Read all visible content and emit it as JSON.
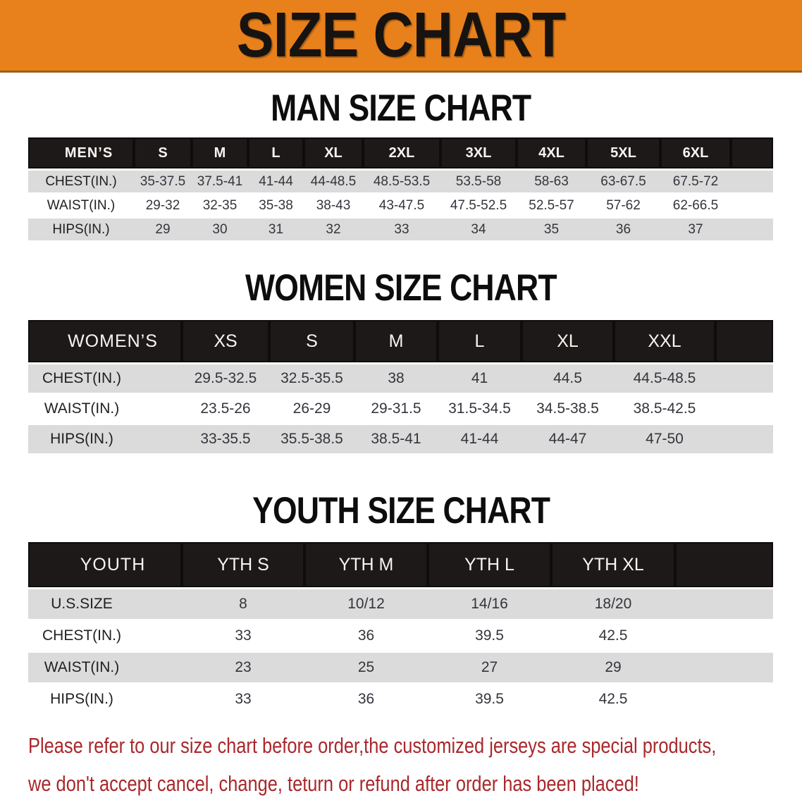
{
  "banner": {
    "title": "SIZE CHART"
  },
  "colors": {
    "banner_orange": "#e8811b",
    "header_black": "#1d1919",
    "row_gray": "#dbdbdb",
    "note_red": "#a8282c"
  },
  "sections": [
    {
      "heading": "MAN SIZE CHART",
      "table": {
        "header_label": "MEN’S",
        "columns": [
          "S",
          "M",
          "L",
          "XL",
          "2XL",
          "3XL",
          "4XL",
          "5XL",
          "6XL"
        ],
        "rows": [
          {
            "label": "CHEST(IN.)",
            "values": [
              "35-37.5",
              "37.5-41",
              "41-44",
              "44-48.5",
              "48.5-53.5",
              "53.5-58",
              "58-63",
              "63-67.5",
              "67.5-72"
            ]
          },
          {
            "label": "WAIST(IN.)",
            "values": [
              "29-32",
              "32-35",
              "35-38",
              "38-43",
              "43-47.5",
              "47.5-52.5",
              "52.5-57",
              "57-62",
              "62-66.5"
            ]
          },
          {
            "label": "HIPS(IN.)",
            "values": [
              "29",
              "30",
              "31",
              "32",
              "33",
              "34",
              "35",
              "36",
              "37"
            ]
          }
        ]
      }
    },
    {
      "heading": "WOMEN SIZE CHART",
      "table": {
        "header_label": "WOMEN’S",
        "columns": [
          "XS",
          "S",
          "M",
          "L",
          "XL",
          "XXL"
        ],
        "rows": [
          {
            "label": "CHEST(IN.)",
            "values": [
              "29.5-32.5",
              "32.5-35.5",
              "38",
              "41",
              "44.5",
              "44.5-48.5"
            ]
          },
          {
            "label": "WAIST(IN.)",
            "values": [
              "23.5-26",
              "26-29",
              "29-31.5",
              "31.5-34.5",
              "34.5-38.5",
              "38.5-42.5"
            ]
          },
          {
            "label": "HIPS(IN.)",
            "values": [
              "33-35.5",
              "35.5-38.5",
              "38.5-41",
              "41-44",
              "44-47",
              "47-50"
            ]
          }
        ]
      }
    },
    {
      "heading": "YOUTH SIZE CHART",
      "table": {
        "header_label": "YOUTH",
        "columns": [
          "YTH S",
          "YTH M",
          "YTH L",
          "YTH XL"
        ],
        "rows": [
          {
            "label": "U.S.SIZE",
            "values": [
              "8",
              "10/12",
              "14/16",
              "18/20"
            ]
          },
          {
            "label": "CHEST(IN.)",
            "values": [
              "33",
              "36",
              "39.5",
              "42.5"
            ]
          },
          {
            "label": "WAIST(IN.)",
            "values": [
              "23",
              "25",
              "27",
              "29"
            ]
          },
          {
            "label": "HIPS(IN.)",
            "values": [
              "33",
              "36",
              "39.5",
              "42.5"
            ]
          }
        ]
      }
    }
  ],
  "footer_note": {
    "line1": "Please refer to our size chart before order,the customized jerseys are special products,",
    "line2": "we don't accept cancel, change, teturn or refund after order has been placed!"
  }
}
